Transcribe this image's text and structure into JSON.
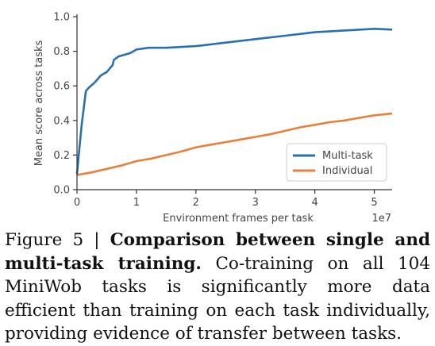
{
  "chart_data": {
    "type": "line",
    "xlabel": "Environment frames per task",
    "ylabel": "Mean score across tasks",
    "x_multiplier_label": "1e7",
    "xlim": [
      0,
      5.3
    ],
    "ylim": [
      0.0,
      1.0
    ],
    "x_ticks": [
      0,
      1,
      2,
      3,
      4,
      5
    ],
    "x_tick_labels": [
      "0",
      "1",
      "2",
      "3",
      "4",
      "5"
    ],
    "y_ticks": [
      0.0,
      0.2,
      0.4,
      0.6,
      0.8,
      1.0
    ],
    "y_tick_labels": [
      "0.0",
      "0.2",
      "0.4",
      "0.6",
      "0.8",
      "1.0"
    ],
    "grid": false,
    "legend_position": "lower-right",
    "series": [
      {
        "name": "Multi-task",
        "color": "#2a6fb0",
        "x": [
          0,
          0.03,
          0.08,
          0.15,
          0.2,
          0.3,
          0.35,
          0.4,
          0.45,
          0.5,
          0.55,
          0.6,
          0.62,
          0.7,
          0.8,
          0.9,
          1.0,
          1.2,
          1.5,
          2.0,
          2.5,
          3.0,
          3.5,
          4.0,
          4.5,
          5.0,
          5.3
        ],
        "y": [
          0.09,
          0.2,
          0.38,
          0.57,
          0.59,
          0.62,
          0.64,
          0.66,
          0.67,
          0.68,
          0.7,
          0.72,
          0.75,
          0.77,
          0.78,
          0.79,
          0.81,
          0.82,
          0.82,
          0.83,
          0.85,
          0.87,
          0.89,
          0.91,
          0.92,
          0.93,
          0.925
        ]
      },
      {
        "name": "Individual",
        "color": "#e8803a",
        "x": [
          0,
          0.25,
          0.5,
          0.75,
          1.0,
          1.25,
          1.5,
          1.75,
          2.0,
          2.25,
          2.5,
          2.75,
          3.0,
          3.25,
          3.5,
          3.75,
          4.0,
          4.25,
          4.5,
          4.75,
          5.0,
          5.3
        ],
        "y": [
          0.085,
          0.1,
          0.12,
          0.14,
          0.165,
          0.18,
          0.2,
          0.22,
          0.245,
          0.26,
          0.275,
          0.29,
          0.305,
          0.32,
          0.34,
          0.36,
          0.375,
          0.39,
          0.4,
          0.415,
          0.43,
          0.44
        ]
      }
    ]
  },
  "caption": {
    "label": "Figure 5 | ",
    "title": "Comparison between single and multi-task training.",
    "body": " Co-training on all 104 MiniWob tasks is significantly more data efficient than training on each task individually, providing evidence of transfer between tasks."
  }
}
